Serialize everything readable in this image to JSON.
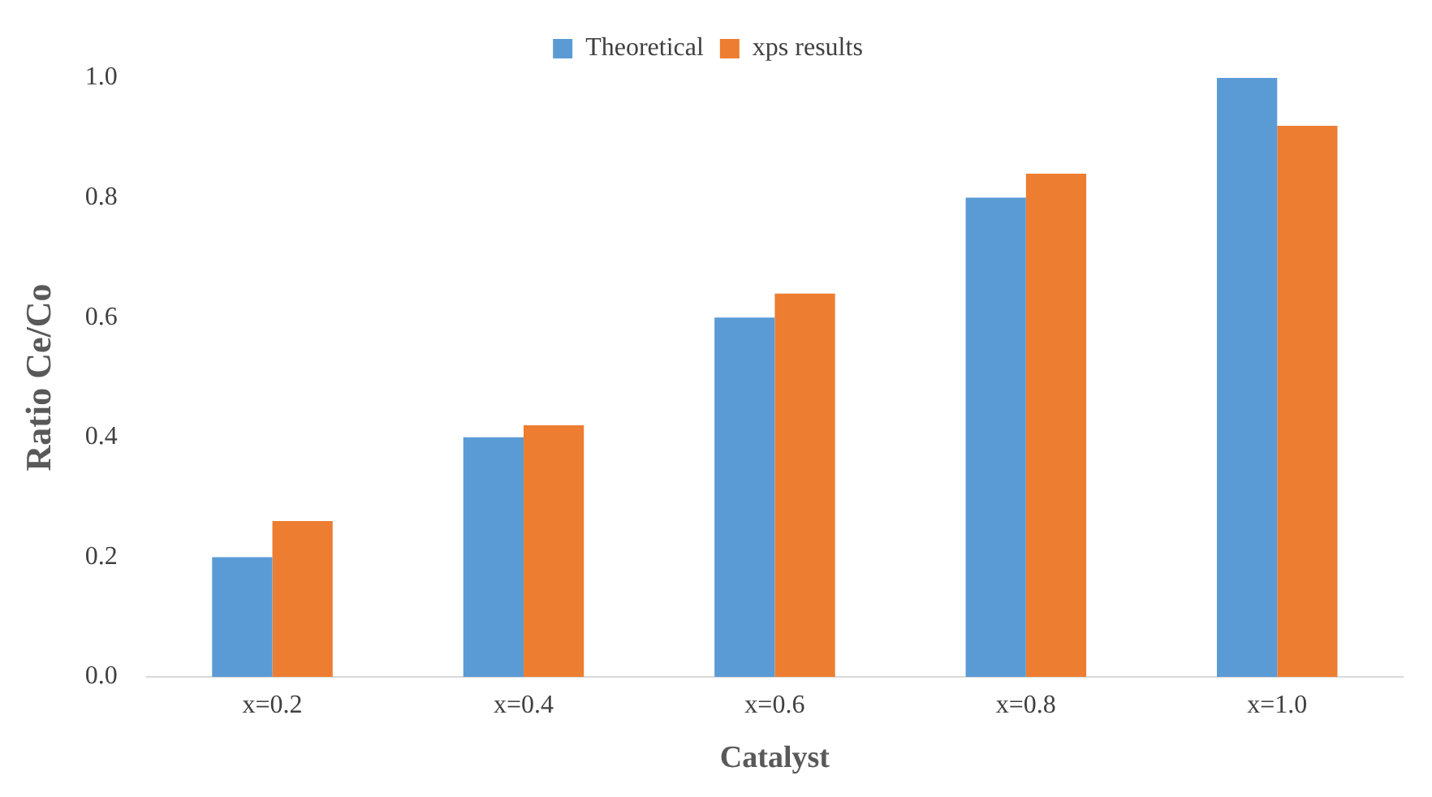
{
  "chart_data": {
    "type": "bar",
    "xlabel": "Catalyst",
    "ylabel": "Ratio Ce/Co",
    "categories": [
      "x=0.2",
      "x=0.4",
      "x=0.6",
      "x=0.8",
      "x=1.0"
    ],
    "series": [
      {
        "name": "Theoretical",
        "color": "#5b9bd5",
        "values": [
          0.2,
          0.4,
          0.6,
          0.8,
          1.0
        ]
      },
      {
        "name": "xps results",
        "color": "#ed7d31",
        "values": [
          0.26,
          0.42,
          0.64,
          0.84,
          0.92
        ]
      }
    ],
    "ylim": [
      0,
      1
    ],
    "yticks": [
      {
        "value": 0,
        "label": "0.0"
      },
      {
        "value": 0.2,
        "label": "0.2"
      },
      {
        "value": 0.4,
        "label": "0.4"
      },
      {
        "value": 0.6,
        "label": "0.6"
      },
      {
        "value": 0.8,
        "label": "0.8"
      },
      {
        "value": 1,
        "label": "1.0"
      }
    ],
    "grid": false,
    "legend": "top"
  }
}
